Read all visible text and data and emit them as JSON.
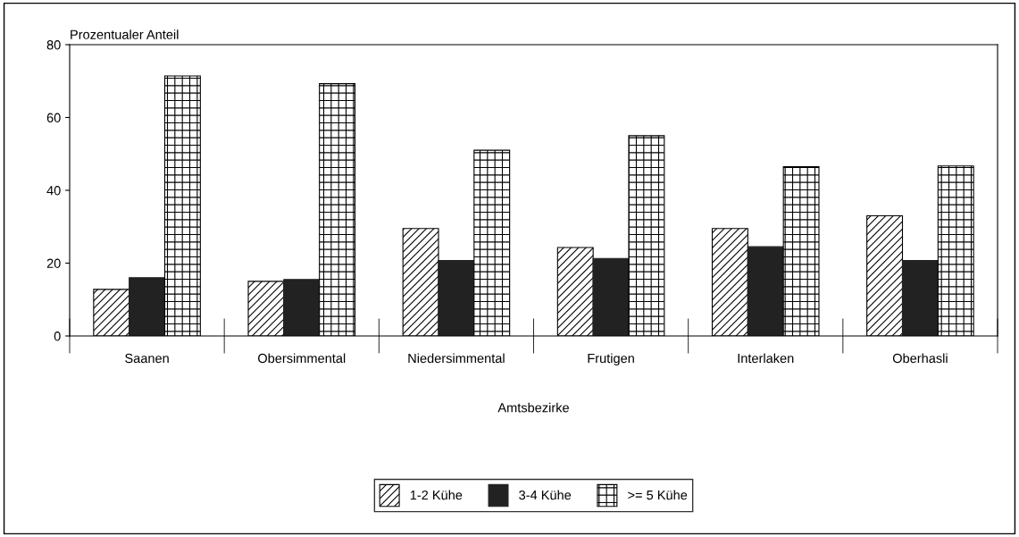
{
  "chart_data": {
    "type": "bar",
    "ylabel": "Prozentualer Anteil",
    "xlabel": "Amtsbezirke",
    "categories": [
      "Saanen",
      "Obersimmental",
      "Niedersimmental",
      "Frutigen",
      "Interlaken",
      "Oberhasli"
    ],
    "series": [
      {
        "name": "1-2 Kühe",
        "color": "#000000",
        "values": [
          12.8,
          15,
          29.5,
          24.3,
          29.5,
          33
        ]
      },
      {
        "name": "3-4 Kühe",
        "color": "#222222",
        "values": [
          16,
          15.5,
          20.7,
          21.3,
          24.5,
          20.7
        ]
      },
      {
        "name": ">= 5 Kühe",
        "color": "#000000",
        "values": [
          71.4,
          69.3,
          51,
          55,
          46.5,
          46.7
        ]
      }
    ],
    "ylim": [
      0,
      80
    ],
    "yticks": [
      0,
      20,
      40,
      60,
      80
    ],
    "grid": false,
    "legend": "bottom"
  }
}
